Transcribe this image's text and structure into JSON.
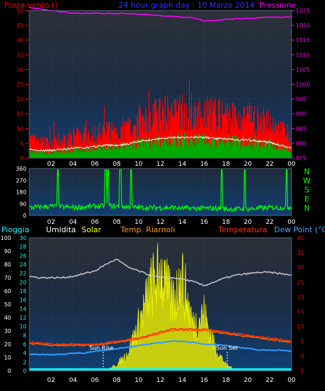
{
  "colors": {
    "background": "#000000",
    "plot_bg_top": "#2a2f36",
    "plot_bg_bottom": "#123a66",
    "grid": "#3a4a5a",
    "tick": "#ffffff",
    "wind_speed": "#ff0000",
    "wind_avg": "#00aa00",
    "wind_white": "#ffffff",
    "pressure": "#ff00ff",
    "direction": "#00ff00",
    "rain": "#ffffff",
    "humidity": "#c8c8c8",
    "solar": "#ffff00",
    "solar_fill": "#e8e800",
    "temperature": "#ff3300",
    "app_temp": "#ff6600",
    "dewpoint": "#3399ff",
    "cyan": "#00ffff",
    "axis_red": "#ff0000",
    "axis_blue": "#4da3ff"
  },
  "header": {
    "left": "Forza vento ()",
    "center": "24 hour graph day : 10 Marzo 2014",
    "right": "Pressione"
  },
  "x_ticks": [
    "02",
    "04",
    "06",
    "08",
    "10",
    "12",
    "14",
    "16",
    "18",
    "20",
    "22",
    "00"
  ],
  "direction_labels": [
    "N",
    "W",
    "S",
    "E",
    "N"
  ],
  "legend": {
    "pioggia": "Pioggia",
    "umidita": "Umidita",
    "solar": "Solar",
    "riarnoli": "Temp. Riarnoli",
    "temperatura": "Temperatura",
    "dewpoint": "Dew Point (°C)"
  },
  "annotations": {
    "sunrise": "Sun Rise",
    "sunset": "Sun Set"
  },
  "chart_data": [
    {
      "type": "line",
      "title": "24 hour graph day : 10 Marzo 2014",
      "x_hours": [
        0,
        1,
        2,
        3,
        4,
        5,
        6,
        7,
        8,
        9,
        10,
        11,
        12,
        13,
        14,
        15,
        16,
        17,
        18,
        19,
        20,
        21,
        22,
        23,
        24
      ],
      "y_left_ticks": [
        0,
        5,
        10,
        15,
        20,
        25,
        30,
        35,
        40,
        45,
        50
      ],
      "y_right_ticks": [
        975,
        980,
        985,
        990,
        995,
        1000,
        1005,
        1010,
        1015,
        1020,
        1025
      ],
      "series": [
        {
          "name": "Forza vento",
          "axis": "left",
          "values": [
            6,
            5,
            5,
            6,
            7,
            7,
            8,
            9,
            9,
            10,
            12,
            13,
            14,
            15,
            15,
            15,
            15,
            14,
            14,
            13,
            13,
            12,
            11,
            9,
            7
          ]
        },
        {
          "name": "Pressione",
          "axis": "right",
          "values": [
            1026,
            1025.5,
            1025,
            1024.5,
            1024,
            1024,
            1024,
            1024,
            1024,
            1024,
            1023.8,
            1023.5,
            1023.3,
            1023,
            1022.8,
            1022.5,
            1021.5,
            1021.5,
            1022,
            1022.2,
            1022.3,
            1022.5,
            1022.7,
            1022.8,
            1022.8
          ]
        }
      ],
      "ylim_left": [
        0,
        50
      ],
      "ylim_right": [
        975,
        1025
      ]
    },
    {
      "type": "line",
      "y_ticks": [
        0,
        90,
        180,
        270,
        360
      ],
      "ylim": [
        0,
        360
      ],
      "series": [
        {
          "name": "direction",
          "values": [
            60,
            65,
            70,
            65,
            60,
            65,
            70,
            75,
            70,
            65,
            60,
            60,
            60,
            60,
            55,
            55,
            55,
            55,
            50,
            50,
            50,
            55,
            60,
            60,
            65
          ]
        }
      ]
    },
    {
      "type": "line",
      "y_left_ticks": [
        0,
        10,
        20,
        30,
        40,
        50,
        60,
        70,
        80,
        90,
        100
      ],
      "y_mid_ticks": [
        0,
        2,
        4,
        6,
        8,
        10,
        12,
        14,
        16,
        18,
        20,
        22,
        24,
        26,
        28,
        30
      ],
      "y_right_ticks": [
        -5,
        0,
        5,
        10,
        15,
        20,
        25,
        30,
        35,
        40
      ],
      "series": [
        {
          "name": "Umidita",
          "values": [
            71,
            70,
            70,
            70,
            71,
            73,
            75,
            80,
            84,
            78,
            75,
            72,
            70,
            70,
            69,
            67,
            64,
            67,
            70,
            72,
            73,
            74,
            74,
            73,
            72
          ]
        },
        {
          "name": "Solar",
          "values": [
            0,
            0,
            0,
            0,
            0,
            0,
            0,
            0,
            5,
            15,
            40,
            70,
            90,
            60,
            80,
            40,
            50,
            20,
            5,
            0,
            0,
            0,
            0,
            0,
            0
          ]
        },
        {
          "name": "Temp. Riarnoli",
          "values": [
            4.5,
            4.5,
            4,
            4,
            4,
            4,
            4,
            4.5,
            5,
            5.5,
            6,
            7,
            8,
            9,
            9,
            9,
            9,
            8.5,
            8,
            7.5,
            7,
            6.5,
            6,
            5.5,
            5
          ]
        },
        {
          "name": "Temperatura",
          "values": [
            4.5,
            4.5,
            4,
            4,
            4,
            4,
            4,
            4.5,
            5,
            5.5,
            6,
            7,
            8,
            9,
            9,
            9,
            9,
            8.5,
            8,
            7.5,
            7,
            6.5,
            6,
            5.5,
            5
          ]
        },
        {
          "name": "Dew Point",
          "values": [
            0.5,
            0.5,
            0.5,
            0.5,
            1,
            1,
            1.5,
            2,
            2.5,
            3,
            3.5,
            4,
            4.5,
            5,
            5,
            4.5,
            4,
            4,
            3.5,
            3,
            2.5,
            2,
            2,
            2,
            1.5
          ]
        },
        {
          "name": "Pioggia",
          "values": [
            0,
            0,
            0,
            0,
            0,
            0,
            0,
            0,
            0,
            0,
            0,
            0,
            0,
            0,
            0,
            0,
            0,
            0,
            0,
            0,
            0,
            0,
            0,
            0,
            0
          ]
        }
      ],
      "ylim_left": [
        0,
        100
      ],
      "ylim_right": [
        -5,
        40
      ]
    }
  ]
}
